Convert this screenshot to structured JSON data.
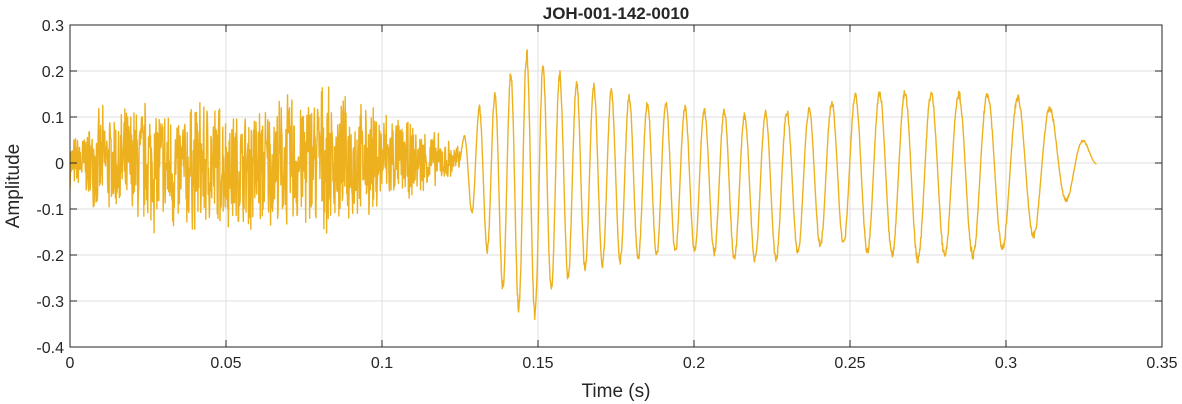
{
  "chart_data": {
    "type": "line",
    "title": "JOH-001-142-0010",
    "xlabel": "Time (s)",
    "ylabel": "Amplitude",
    "xlim": [
      0,
      0.35
    ],
    "ylim": [
      -0.4,
      0.3
    ],
    "xticks": [
      0,
      0.05,
      0.1,
      0.15,
      0.2,
      0.25,
      0.3,
      0.35
    ],
    "xtick_labels": [
      "0",
      "0.05",
      "0.1",
      "0.15",
      "0.2",
      "0.25",
      "0.3",
      "0.35"
    ],
    "yticks": [
      -0.4,
      -0.3,
      -0.2,
      -0.1,
      0,
      0.1,
      0.2,
      0.3
    ],
    "ytick_labels": [
      "-0.4",
      "-0.3",
      "-0.2",
      "-0.1",
      "0",
      "0.1",
      "0.2",
      "0.3"
    ],
    "grid": true,
    "color": "#EDB120",
    "series": [
      {
        "x": [
          0,
          0.005,
          0.01,
          0.015,
          0.02,
          0.025,
          0.03,
          0.035,
          0.04,
          0.045,
          0.05,
          0.055,
          0.06,
          0.065,
          0.07,
          0.075,
          0.08,
          0.085,
          0.09,
          0.095,
          0.1,
          0.105,
          0.11,
          0.115,
          0.12,
          0.125,
          0.13,
          0.135,
          0.14,
          0.145,
          0.15,
          0.155,
          0.16,
          0.165,
          0.17,
          0.175,
          0.18,
          0.185,
          0.19,
          0.195,
          0.2,
          0.205,
          0.21,
          0.215,
          0.22,
          0.225,
          0.23,
          0.235,
          0.24,
          0.245,
          0.25,
          0.255,
          0.26,
          0.265,
          0.27,
          0.275,
          0.28,
          0.285,
          0.29,
          0.295,
          0.3,
          0.305,
          0.31,
          0.315,
          0.32,
          0.325,
          0.329
        ],
        "max": [
          0.06,
          0.08,
          0.13,
          0.12,
          0.14,
          0.16,
          0.15,
          0.13,
          0.15,
          0.16,
          0.14,
          0.12,
          0.15,
          0.14,
          0.17,
          0.16,
          0.2,
          0.14,
          0.16,
          0.13,
          0.14,
          0.11,
          0.09,
          0.08,
          0.06,
          0.04,
          0.12,
          0.15,
          0.19,
          0.26,
          0.23,
          0.21,
          0.19,
          0.18,
          0.17,
          0.16,
          0.15,
          0.14,
          0.14,
          0.13,
          0.13,
          0.12,
          0.12,
          0.11,
          0.11,
          0.12,
          0.12,
          0.12,
          0.13,
          0.14,
          0.15,
          0.16,
          0.16,
          0.16,
          0.16,
          0.16,
          0.16,
          0.16,
          0.16,
          0.16,
          0.15,
          0.15,
          0.14,
          0.12,
          0.09,
          0.05,
          0.02
        ],
        "min": [
          -0.06,
          -0.08,
          -0.12,
          -0.13,
          -0.15,
          -0.16,
          -0.17,
          -0.18,
          -0.16,
          -0.17,
          -0.15,
          -0.16,
          -0.17,
          -0.15,
          -0.16,
          -0.16,
          -0.17,
          -0.14,
          -0.15,
          -0.13,
          -0.12,
          -0.09,
          -0.08,
          -0.07,
          -0.05,
          -0.03,
          -0.14,
          -0.22,
          -0.3,
          -0.34,
          -0.35,
          -0.28,
          -0.26,
          -0.24,
          -0.23,
          -0.22,
          -0.22,
          -0.21,
          -0.21,
          -0.2,
          -0.2,
          -0.2,
          -0.21,
          -0.22,
          -0.22,
          -0.22,
          -0.21,
          -0.2,
          -0.19,
          -0.18,
          -0.19,
          -0.2,
          -0.21,
          -0.21,
          -0.22,
          -0.22,
          -0.21,
          -0.21,
          -0.21,
          -0.2,
          -0.19,
          -0.18,
          -0.16,
          -0.12,
          -0.08,
          -0.05,
          -0.01
        ]
      }
    ]
  }
}
